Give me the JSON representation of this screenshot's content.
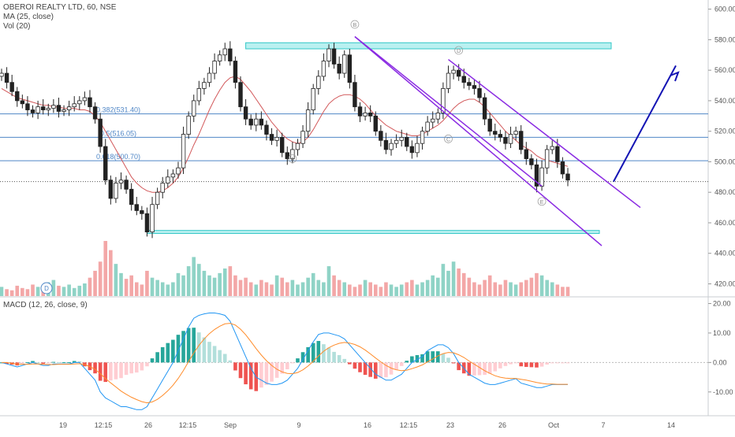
{
  "chart_data": [
    {
      "type": "candlestick",
      "symbol_header": "OBEROI REALTY LTD, 60, NSE",
      "indicators": [
        "MA (25, close)",
        "Vol (20)"
      ],
      "x_tick_labels": [
        "19",
        "12:15",
        "26",
        "12:15",
        "Sep",
        "9",
        "16",
        "12:15",
        "23",
        "26",
        "Oct",
        "7",
        "14"
      ],
      "y_tick_labels": [
        "600.00",
        "580.00",
        "560.00",
        "540.00",
        "520.00",
        "500.00",
        "480.00",
        "460.00",
        "440.00",
        "420.00"
      ],
      "ylim": [
        412,
        606
      ],
      "close_series": [
        558,
        552,
        546,
        540,
        538,
        534,
        532,
        536,
        534,
        535,
        537,
        533,
        534,
        536,
        538,
        540,
        542,
        536,
        528,
        510,
        488,
        476,
        486,
        488,
        482,
        472,
        468,
        466,
        454,
        472,
        480,
        486,
        490,
        492,
        496,
        518,
        530,
        540,
        548,
        552,
        558,
        566,
        570,
        574,
        566,
        552,
        536,
        528,
        524,
        528,
        524,
        518,
        514,
        516,
        506,
        502,
        508,
        512,
        520,
        534,
        548,
        556,
        566,
        574,
        564,
        558,
        570,
        552,
        536,
        530,
        532,
        530,
        520,
        514,
        508,
        512,
        514,
        516,
        510,
        506,
        512,
        520,
        526,
        528,
        532,
        548,
        558,
        560,
        556,
        552,
        550,
        548,
        542,
        528,
        520,
        518,
        516,
        512,
        518,
        520,
        508,
        502,
        498,
        484,
        496,
        508,
        510,
        500,
        492,
        488
      ],
      "ma_series": [
        548,
        546,
        544,
        542,
        541,
        540,
        539,
        538,
        537,
        537,
        536,
        536,
        535,
        535,
        535,
        534,
        534,
        533,
        530,
        526,
        520,
        514,
        508,
        502,
        496,
        490,
        486,
        483,
        481,
        480,
        480,
        481,
        483,
        486,
        490,
        496,
        503,
        511,
        518,
        526,
        534,
        541,
        547,
        552,
        555,
        556,
        554,
        550,
        546,
        541,
        536,
        531,
        526,
        522,
        518,
        515,
        513,
        512,
        513,
        516,
        521,
        527,
        533,
        538,
        541,
        543,
        544,
        544,
        543,
        541,
        538,
        534,
        530,
        527,
        524,
        522,
        520,
        519,
        518,
        517,
        517,
        518,
        520,
        522,
        524,
        527,
        531,
        535,
        538,
        540,
        541,
        541,
        539,
        536,
        532,
        528,
        524,
        520,
        517,
        514,
        511,
        509,
        507,
        504,
        502,
        501,
        500,
        499,
        498,
        497
      ],
      "volume_series": [
        8,
        6,
        5,
        9,
        7,
        6,
        10,
        8,
        7,
        12,
        14,
        9,
        8,
        10,
        7,
        9,
        11,
        16,
        22,
        30,
        48,
        40,
        28,
        20,
        15,
        18,
        12,
        10,
        22,
        16,
        14,
        12,
        10,
        12,
        20,
        18,
        26,
        34,
        28,
        22,
        18,
        16,
        20,
        24,
        26,
        18,
        14,
        16,
        12,
        10,
        14,
        12,
        10,
        18,
        16,
        12,
        14,
        10,
        12,
        16,
        20,
        14,
        12,
        26,
        18,
        14,
        12,
        10,
        8,
        10,
        14,
        12,
        10,
        8,
        12,
        10,
        8,
        10,
        12,
        14,
        10,
        12,
        14,
        18,
        16,
        28,
        22,
        30,
        24,
        20,
        16,
        12,
        10,
        14,
        18,
        12,
        10,
        14,
        12,
        10,
        12,
        14,
        16,
        20,
        18,
        14,
        12,
        10,
        8,
        8
      ],
      "horizontal_levels": [
        {
          "label": "0.382(531.40)",
          "value": 531.4
        },
        {
          "label": "0.5(516.05)",
          "value": 516.05
        },
        {
          "label": "0.618(500.70)",
          "value": 500.7
        }
      ],
      "current_price_line": 487,
      "resistance_zone": [
        574,
        578
      ],
      "support_zone": [
        453,
        455
      ],
      "wave_labels": [
        "A",
        "B",
        "C",
        "D",
        "E"
      ],
      "volume_marker_label": "D"
    },
    {
      "type": "macd",
      "legend": "MACD (12, 26, close, 9)",
      "y_tick_labels": [
        "20.00",
        "10.00",
        "0.00",
        "-10.00"
      ],
      "ylim": [
        -17,
        22
      ],
      "macd_series": [
        0,
        -0.5,
        -1,
        -1.5,
        -1,
        -0.5,
        0,
        -0.5,
        -1,
        -1,
        -0.5,
        -0.5,
        -0.5,
        -0.5,
        0,
        0,
        -2,
        -4,
        -6,
        -10,
        -12,
        -13,
        -14,
        -15,
        -15,
        -15.5,
        -16,
        -16,
        -15,
        -12,
        -9,
        -6,
        -3,
        0,
        4,
        8,
        12,
        15,
        16,
        16.5,
        16.8,
        16.8,
        16.5,
        16,
        14,
        10,
        6,
        2,
        -2,
        -5,
        -6,
        -7,
        -7.5,
        -7.5,
        -7,
        -6,
        -4,
        -2,
        1,
        4,
        7,
        9.5,
        10,
        10,
        9.5,
        9,
        8,
        6,
        4,
        2,
        0,
        -2,
        -4,
        -5,
        -6,
        -6,
        -5,
        -4,
        -2,
        0,
        1,
        2,
        4,
        5,
        6,
        6,
        5,
        3,
        0,
        -2,
        -4,
        -5,
        -6,
        -7,
        -7.5,
        -7.5,
        -7,
        -6.5,
        -6,
        -5.5,
        -7,
        -7.5,
        -8,
        -8.5,
        -8.5,
        -8,
        -7.5,
        -7.5,
        -7.5,
        -7.5
      ],
      "signal_series": [
        0,
        0,
        -0.3,
        -0.5,
        -0.6,
        -0.6,
        -0.5,
        -0.5,
        -0.6,
        -0.7,
        -0.7,
        -0.6,
        -0.6,
        -0.6,
        -0.5,
        -0.4,
        -0.7,
        -1.4,
        -2.3,
        -3.8,
        -5.4,
        -6.9,
        -8.3,
        -9.7,
        -10.8,
        -11.8,
        -12.6,
        -13.3,
        -13.7,
        -13.4,
        -12.5,
        -11.2,
        -9.6,
        -7.7,
        -5.4,
        -2.7,
        0.3,
        3.2,
        5.8,
        8,
        9.8,
        11.2,
        12.3,
        13.1,
        13.3,
        12.7,
        11.3,
        9.4,
        7.1,
        4.7,
        2.5,
        0.6,
        -1,
        -2.3,
        -3.2,
        -3.7,
        -3.8,
        -3.4,
        -2.5,
        -1.2,
        0.4,
        2.2,
        3.8,
        5,
        5.9,
        6.5,
        6.8,
        6.6,
        6.1,
        5.3,
        4.2,
        2.9,
        1.5,
        0.2,
        -1,
        -1.9,
        -2.5,
        -2.8,
        -2.6,
        -2.1,
        -1.5,
        -0.8,
        0.2,
        1.2,
        2.2,
        3,
        3.4,
        3.3,
        2.6,
        1.7,
        0.5,
        -0.6,
        -1.7,
        -2.8,
        -3.7,
        -4.5,
        -5,
        -5.3,
        -5.4,
        -5.4,
        -5.7,
        -6,
        -6.4,
        -6.8,
        -7.1,
        -7.3,
        -7.3,
        -7.4,
        -7.4,
        -7.4
      ]
    }
  ]
}
